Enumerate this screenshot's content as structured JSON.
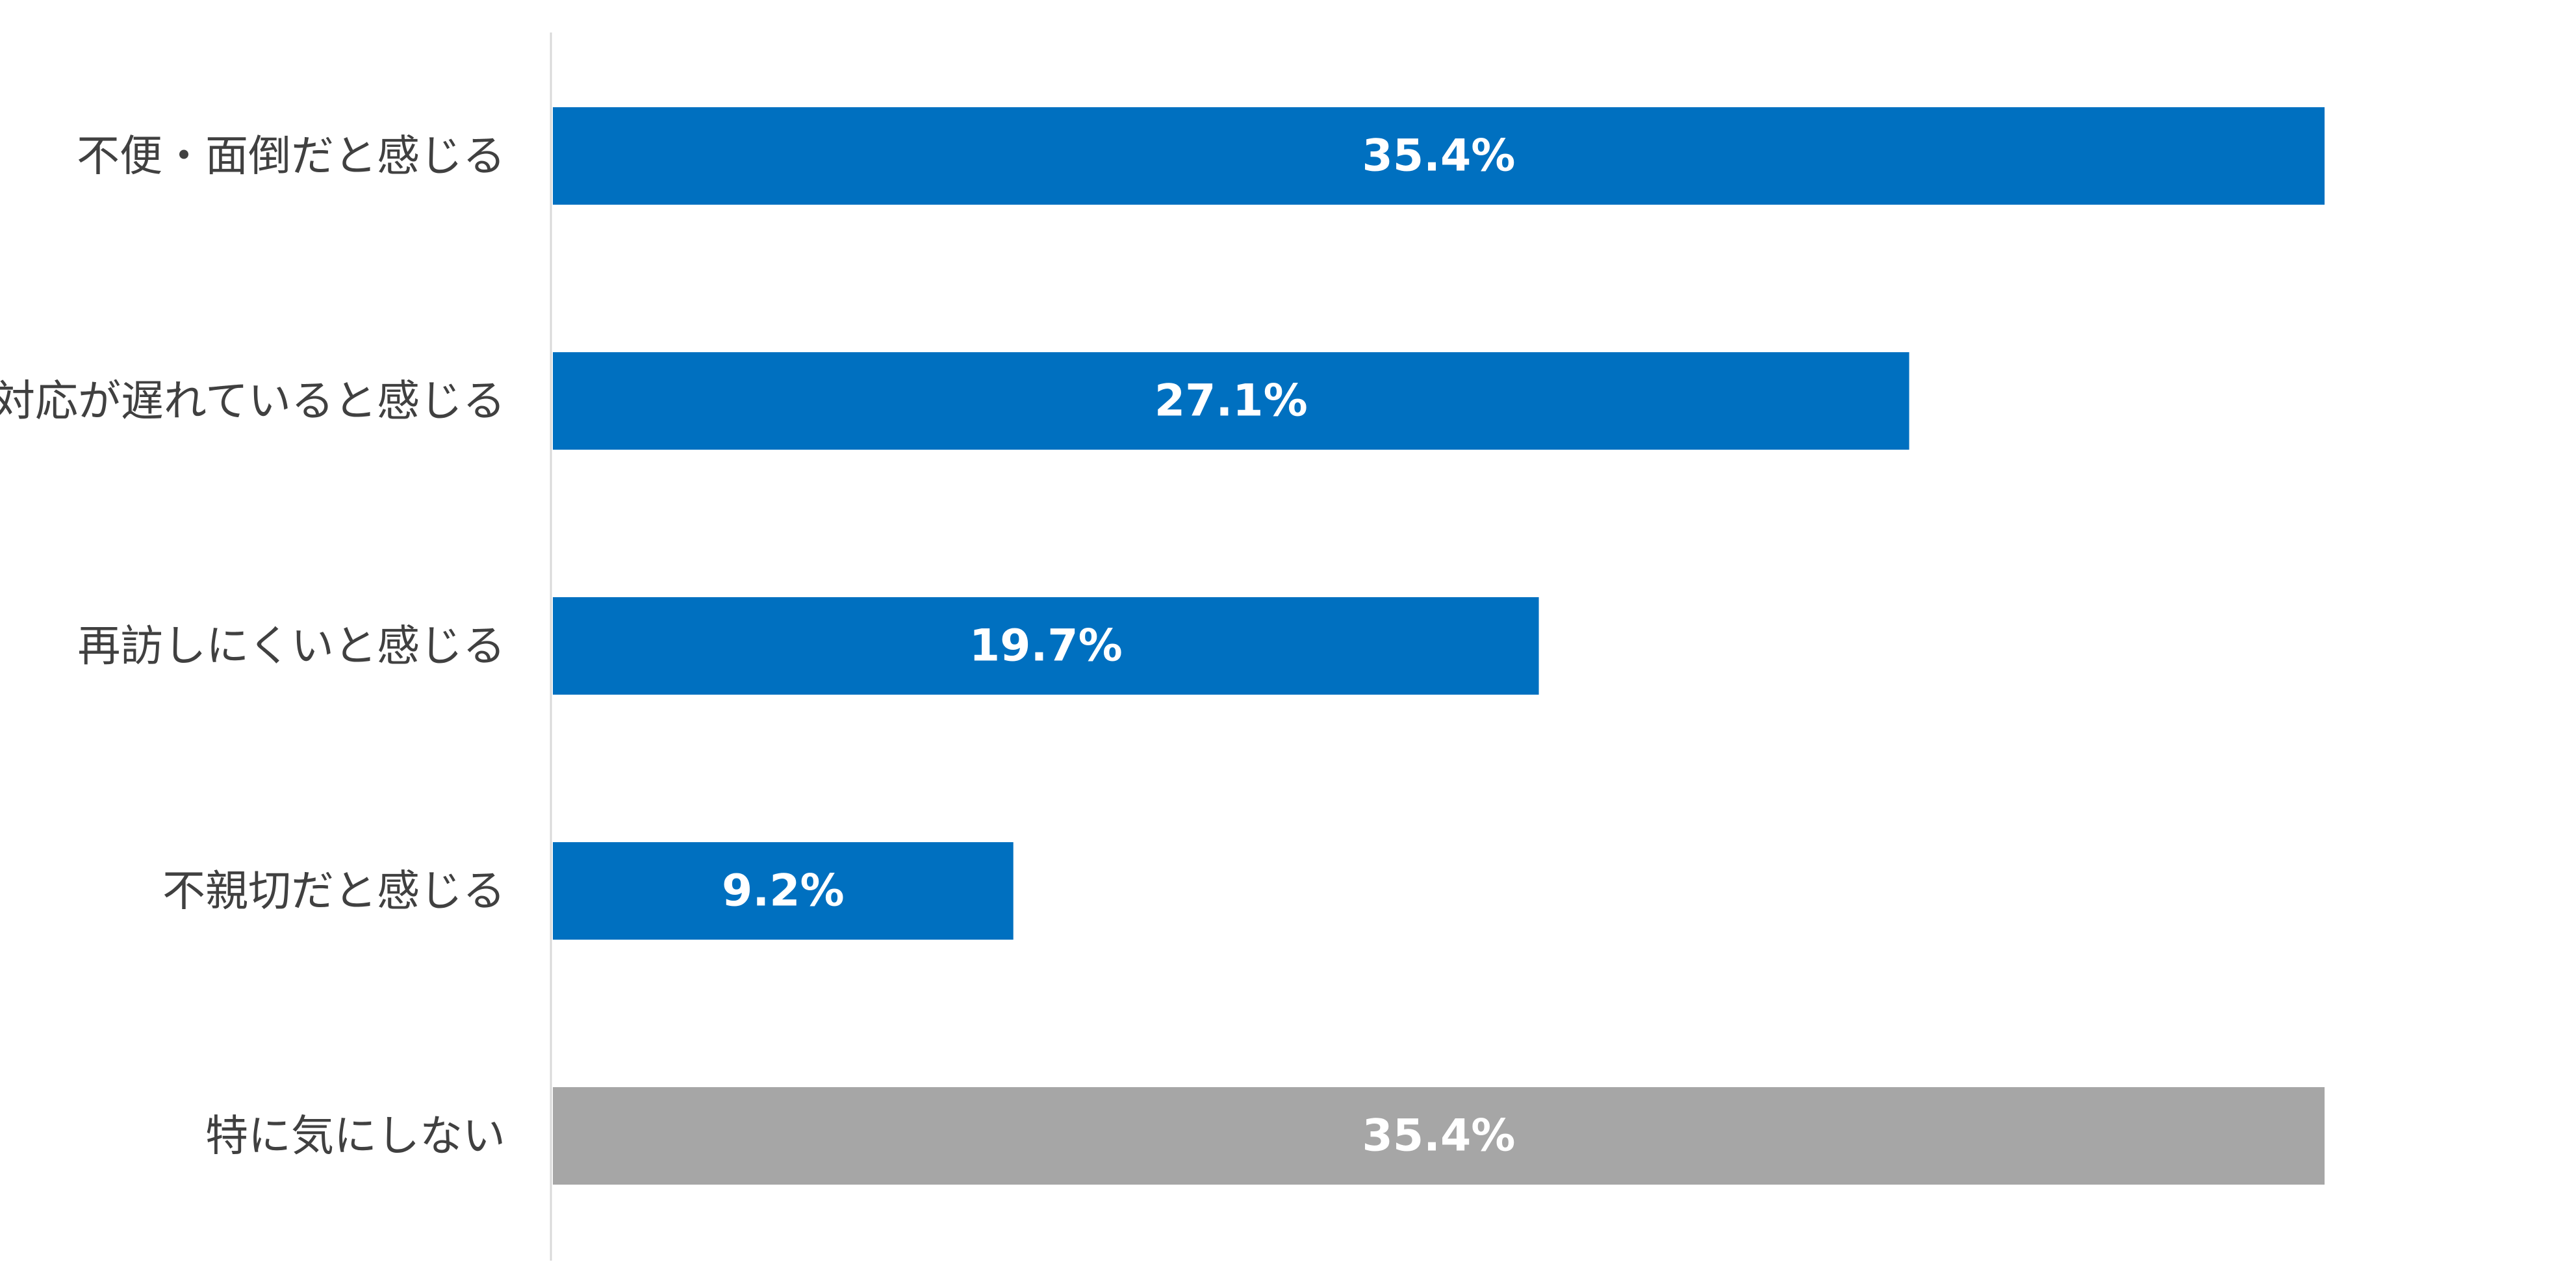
{
  "chart_data": {
    "type": "bar",
    "orientation": "horizontal",
    "categories": [
      "不便・面倒だと感じる",
      "対応が遅れていると感じる",
      "再訪しにくいと感じる",
      "不親切だと感じる",
      "特に気にしない"
    ],
    "values": [
      35.4,
      27.1,
      19.7,
      9.2,
      35.4
    ],
    "data_labels": [
      "35.4%",
      "27.1%",
      "19.7%",
      "9.2%",
      "35.4%"
    ],
    "colors": [
      "#0070C0",
      "#0070C0",
      "#0070C0",
      "#0070C0",
      "#A6A6A6"
    ],
    "xlim": [
      0,
      35.4
    ],
    "title": "",
    "xlabel": "",
    "ylabel": "",
    "grid": false,
    "legend": "none"
  },
  "colors": {
    "accent": "#0070C0",
    "neutral_bar": "#A6A6A6",
    "axis_line": "#D9D9D9",
    "label_text": "#404040",
    "value_text": "#FFFFFF"
  }
}
